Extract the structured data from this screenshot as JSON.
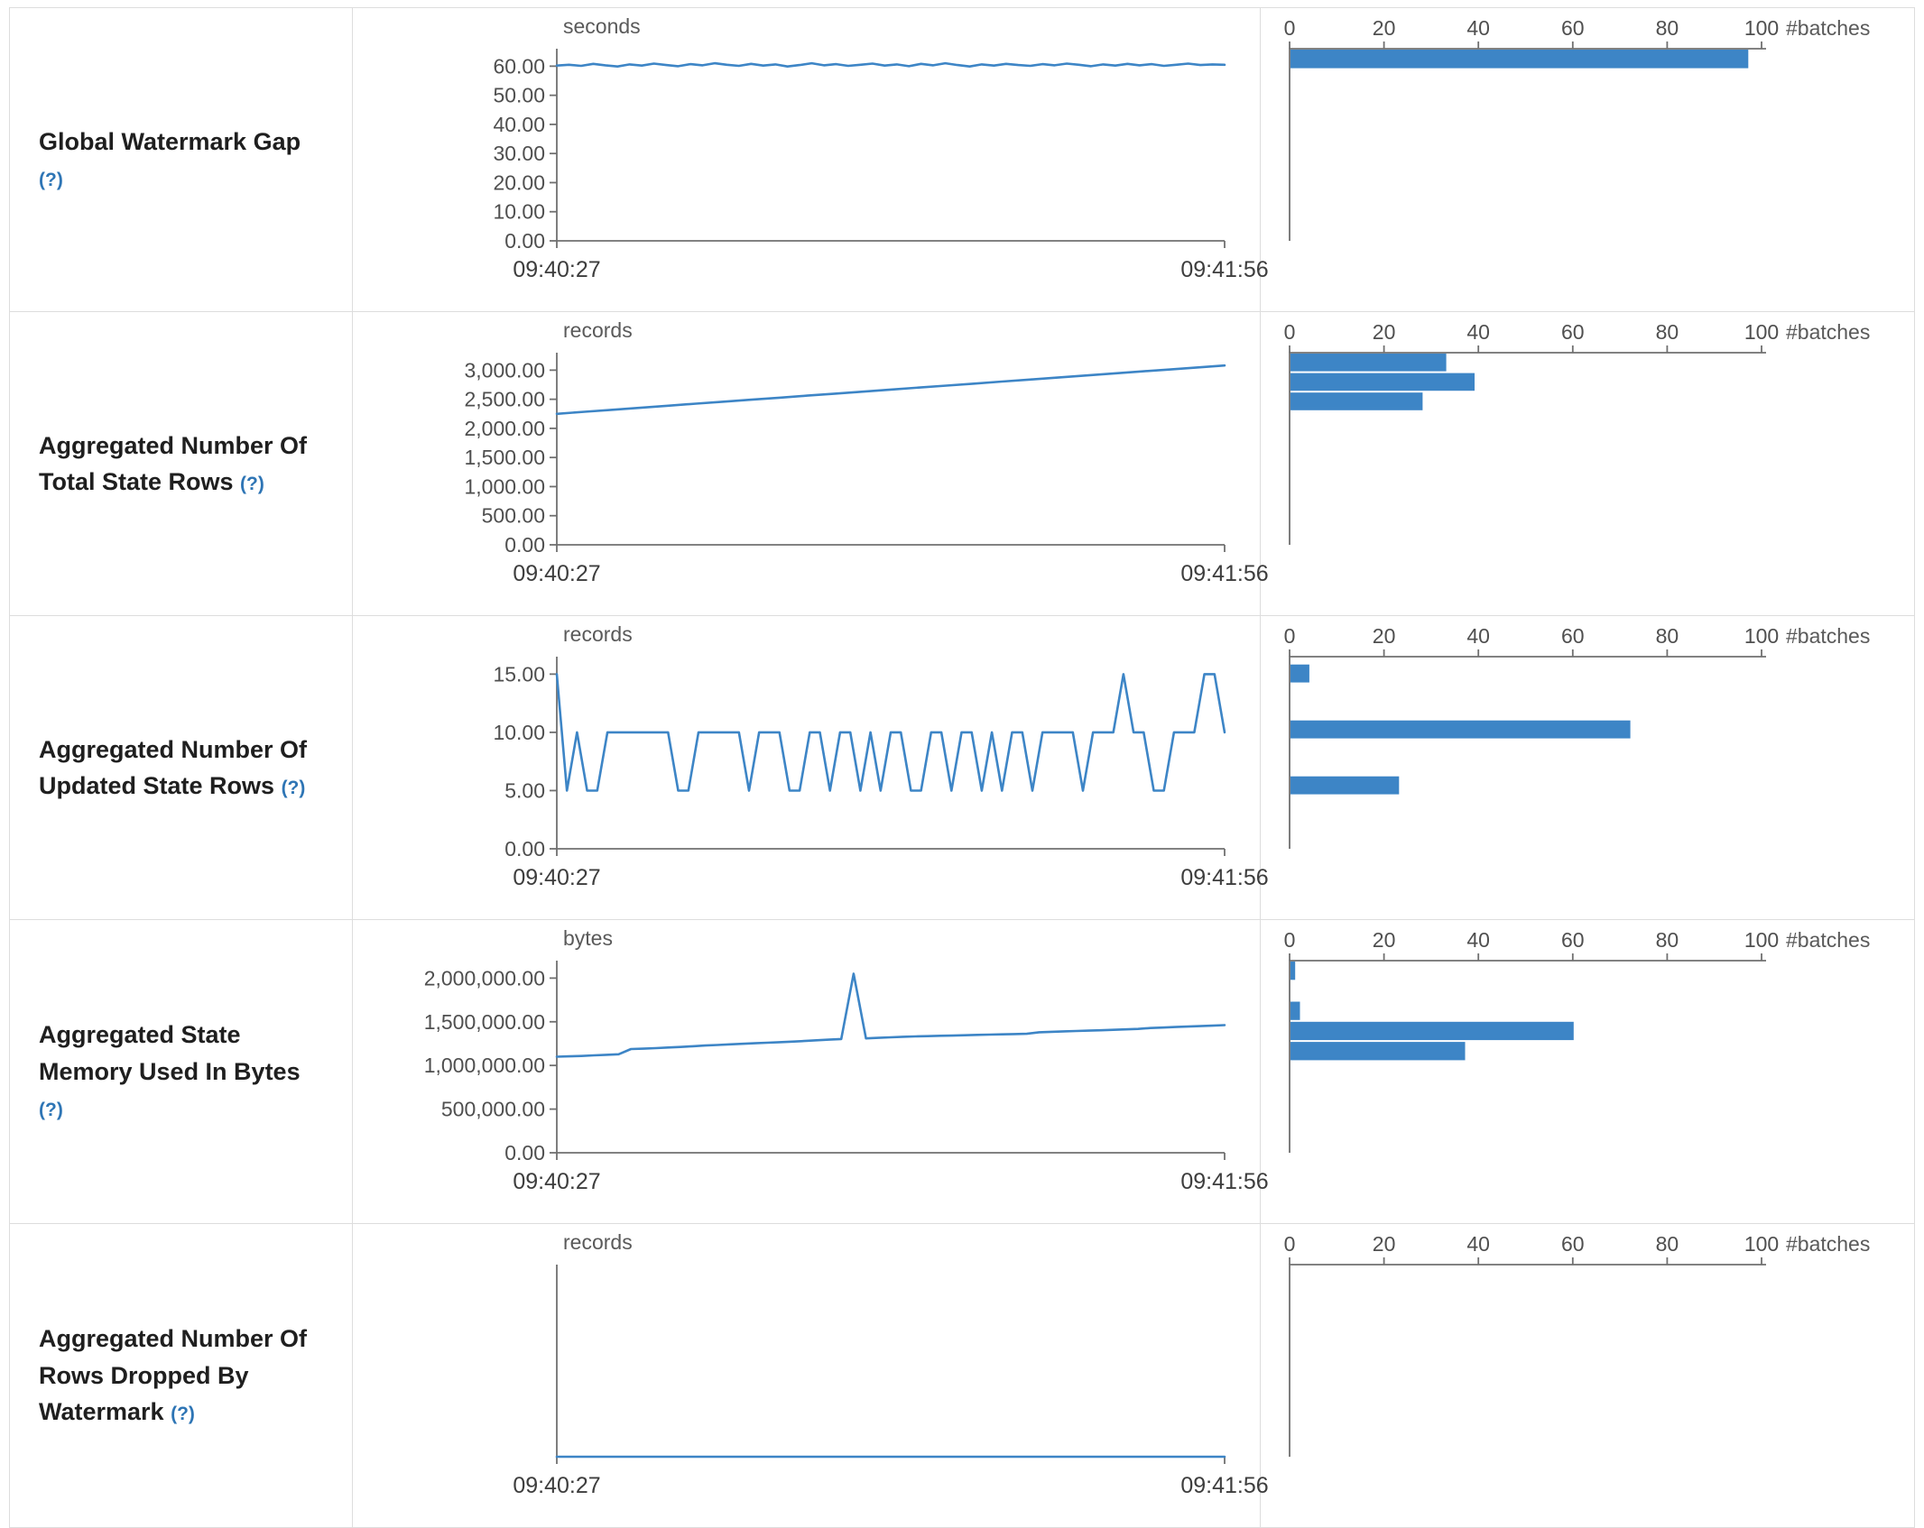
{
  "colors": {
    "accent": "#3d85c6",
    "axis": "#707070",
    "tick_text": "#4f4f4f",
    "label_text": "#1f1f1f",
    "help_link": "#2e75b5",
    "border": "#dddddd"
  },
  "histogram_axis": {
    "label": "#batches",
    "max": 100,
    "ticks": [
      {
        "value": 0,
        "label": "0"
      },
      {
        "value": 20,
        "label": "20"
      },
      {
        "value": 40,
        "label": "40"
      },
      {
        "value": 60,
        "label": "60"
      },
      {
        "value": 80,
        "label": "80"
      },
      {
        "value": 100,
        "label": "100"
      }
    ]
  },
  "chart_data": [
    {
      "metric": "Global Watermark Gap",
      "help": "(?)",
      "timeline": {
        "type": "line",
        "unit": "seconds",
        "x_tick_labels": [
          "09:40:27",
          "09:41:56"
        ],
        "ylim": [
          0,
          66
        ],
        "yticks": [
          {
            "value": 0,
            "label": "0.00"
          },
          {
            "value": 10,
            "label": "10.00"
          },
          {
            "value": 20,
            "label": "20.00"
          },
          {
            "value": 30,
            "label": "30.00"
          },
          {
            "value": 40,
            "label": "40.00"
          },
          {
            "value": 50,
            "label": "50.00"
          },
          {
            "value": 60,
            "label": "60.00"
          }
        ],
        "values": [
          60.2,
          60.5,
          60.1,
          60.8,
          60.3,
          59.9,
          60.6,
          60.2,
          60.9,
          60.4,
          60.0,
          60.7,
          60.3,
          61.0,
          60.5,
          60.1,
          60.8,
          60.2,
          60.6,
          59.9,
          60.4,
          61.0,
          60.3,
          60.7,
          60.1,
          60.5,
          60.9,
          60.2,
          60.6,
          60.0,
          60.8,
          60.3,
          61.0,
          60.4,
          59.9,
          60.6,
          60.2,
          60.8,
          60.4,
          60.1,
          60.7,
          60.3,
          60.9,
          60.5,
          60.0,
          60.6,
          60.2,
          60.8,
          60.3,
          60.7,
          60.1,
          60.5,
          60.9,
          60.4,
          60.6,
          60.5
        ]
      },
      "histogram": {
        "type": "bar",
        "bins": [
          {
            "from": 59,
            "to": 66,
            "batches": 97
          }
        ]
      }
    },
    {
      "metric": "Aggregated Number Of Total State Rows",
      "help": "(?)",
      "timeline": {
        "type": "line",
        "unit": "records",
        "x_tick_labels": [
          "09:40:27",
          "09:41:56"
        ],
        "ylim": [
          0,
          3300
        ],
        "yticks": [
          {
            "value": 0,
            "label": "0.00"
          },
          {
            "value": 500,
            "label": "500.00"
          },
          {
            "value": 1000,
            "label": "1,000.00"
          },
          {
            "value": 1500,
            "label": "1,500.00"
          },
          {
            "value": 2000,
            "label": "2,000.00"
          },
          {
            "value": 2500,
            "label": "2,500.00"
          },
          {
            "value": 3000,
            "label": "3,000.00"
          }
        ],
        "values": [
          2250,
          2285,
          2320,
          2354,
          2389,
          2424,
          2458,
          2493,
          2527,
          2562,
          2596,
          2631,
          2666,
          2700,
          2735,
          2769,
          2804,
          2838,
          2873,
          2908,
          2942,
          2977,
          3011,
          3046,
          3080
        ]
      },
      "histogram": {
        "type": "bar",
        "bins": [
          {
            "from": 2965,
            "to": 3300,
            "batches": 33
          },
          {
            "from": 2630,
            "to": 2965,
            "batches": 39
          },
          {
            "from": 2295,
            "to": 2630,
            "batches": 28
          }
        ]
      }
    },
    {
      "metric": "Aggregated Number Of Updated State Rows",
      "help": "(?)",
      "timeline": {
        "type": "line",
        "unit": "records",
        "x_tick_labels": [
          "09:40:27",
          "09:41:56"
        ],
        "ylim": [
          0,
          16.5
        ],
        "yticks": [
          {
            "value": 0,
            "label": "0.00"
          },
          {
            "value": 5,
            "label": "5.00"
          },
          {
            "value": 10,
            "label": "10.00"
          },
          {
            "value": 15,
            "label": "15.00"
          }
        ],
        "values": [
          15,
          5,
          10,
          5,
          5,
          10,
          10,
          10,
          10,
          10,
          10,
          10,
          5,
          5,
          10,
          10,
          10,
          10,
          10,
          5,
          10,
          10,
          10,
          5,
          5,
          10,
          10,
          5,
          10,
          10,
          5,
          10,
          5,
          10,
          10,
          5,
          5,
          10,
          10,
          5,
          10,
          10,
          5,
          10,
          5,
          10,
          10,
          5,
          10,
          10,
          10,
          10,
          5,
          10,
          10,
          10,
          15,
          10,
          10,
          5,
          5,
          10,
          10,
          10,
          15,
          15,
          10
        ]
      },
      "histogram": {
        "type": "bar",
        "bins": [
          {
            "from": 14.2,
            "to": 15.9,
            "batches": 4
          },
          {
            "from": 9.4,
            "to": 11.1,
            "batches": 72
          },
          {
            "from": 4.6,
            "to": 6.3,
            "batches": 23
          }
        ]
      }
    },
    {
      "metric": "Aggregated State Memory Used In Bytes",
      "help": "(?)",
      "timeline": {
        "type": "line",
        "unit": "bytes",
        "x_tick_labels": [
          "09:40:27",
          "09:41:56"
        ],
        "ylim": [
          0,
          2200000
        ],
        "yticks": [
          {
            "value": 0,
            "label": "0.00"
          },
          {
            "value": 500000,
            "label": "500,000.00"
          },
          {
            "value": 1000000,
            "label": "1,000,000.00"
          },
          {
            "value": 1500000,
            "label": "1,500,000.00"
          },
          {
            "value": 2000000,
            "label": "2,000,000.00"
          }
        ],
        "values": [
          1100000,
          1104000,
          1108000,
          1115000,
          1122000,
          1128000,
          1188000,
          1192000,
          1198000,
          1205000,
          1212000,
          1220000,
          1228000,
          1234000,
          1242000,
          1248000,
          1254000,
          1260000,
          1266000,
          1272000,
          1280000,
          1288000,
          1295000,
          1302000,
          2050000,
          1310000,
          1316000,
          1322000,
          1328000,
          1332000,
          1336000,
          1340000,
          1342000,
          1346000,
          1350000,
          1353000,
          1356000,
          1359000,
          1362000,
          1380000,
          1385000,
          1390000,
          1394000,
          1398000,
          1403000,
          1408000,
          1413000,
          1418000,
          1428000,
          1434000,
          1440000,
          1445000,
          1450000,
          1455000,
          1462000
        ]
      },
      "histogram": {
        "type": "bar",
        "bins": [
          {
            "from": 1970000,
            "to": 2200000,
            "batches": 1
          },
          {
            "from": 1510000,
            "to": 1740000,
            "batches": 2
          },
          {
            "from": 1280000,
            "to": 1510000,
            "batches": 60
          },
          {
            "from": 1050000,
            "to": 1280000,
            "batches": 37
          }
        ]
      }
    },
    {
      "metric": "Aggregated Number Of Rows Dropped By Watermark",
      "help": "(?)",
      "timeline": {
        "type": "line",
        "unit": "records",
        "x_tick_labels": [
          "09:40:27",
          "09:41:56"
        ],
        "ylim": [
          0,
          1
        ],
        "yticks": [],
        "values": [
          0,
          0
        ]
      },
      "histogram": {
        "type": "bar",
        "bins": []
      }
    }
  ]
}
